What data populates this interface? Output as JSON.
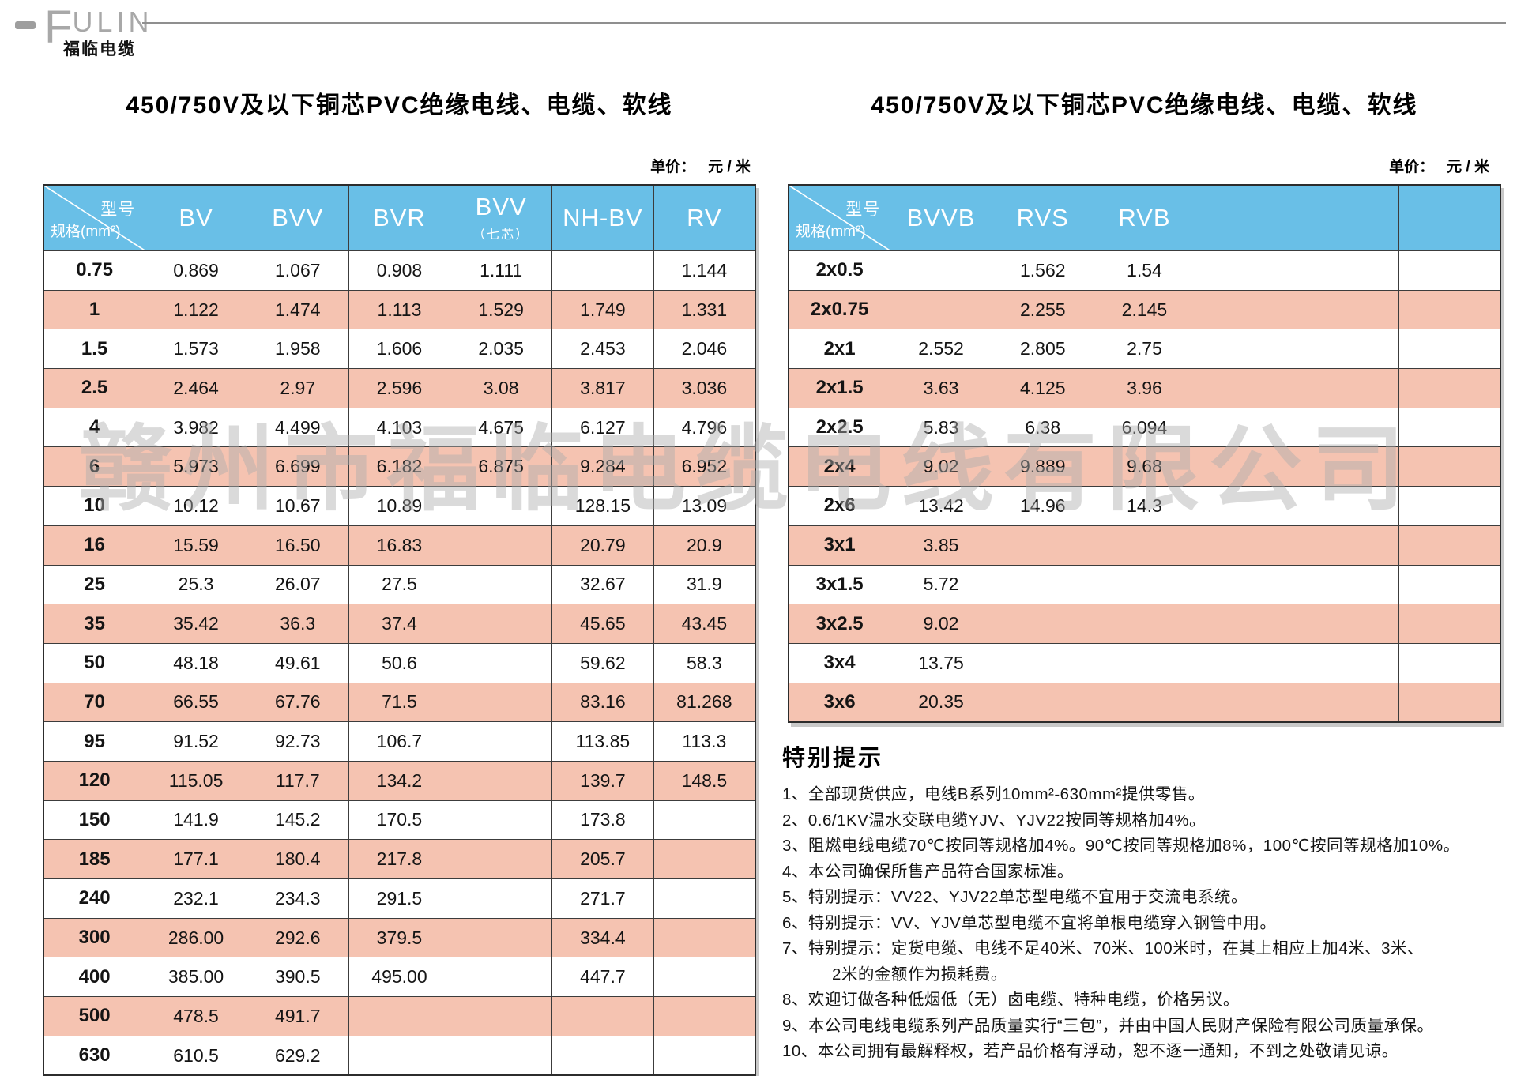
{
  "logo": {
    "brand_initial": "F",
    "brand_rest": "ULIN",
    "brand_cn": "福临电缆"
  },
  "watermark": "赣州市福临电缆电线有限公司",
  "left_table": {
    "title": "450/750V及以下铜芯PVC绝缘电线、电缆、软线",
    "unit_label": "单价：",
    "unit_value": "元 / 米",
    "corner_top": "型号",
    "corner_bottom": "规格(mm²)",
    "columns": [
      {
        "label": "BV",
        "sub": ""
      },
      {
        "label": "BVV",
        "sub": ""
      },
      {
        "label": "BVR",
        "sub": ""
      },
      {
        "label": "BVV",
        "sub": "（七芯）"
      },
      {
        "label": "NH-BV",
        "sub": ""
      },
      {
        "label": "RV",
        "sub": ""
      }
    ],
    "rows": [
      [
        "0.75",
        "0.869",
        "1.067",
        "0.908",
        "1.111",
        "",
        "1.144"
      ],
      [
        "1",
        "1.122",
        "1.474",
        "1.113",
        "1.529",
        "1.749",
        "1.331"
      ],
      [
        "1.5",
        "1.573",
        "1.958",
        "1.606",
        "2.035",
        "2.453",
        "2.046"
      ],
      [
        "2.5",
        "2.464",
        "2.97",
        "2.596",
        "3.08",
        "3.817",
        "3.036"
      ],
      [
        "4",
        "3.982",
        "4.499",
        "4.103",
        "4.675",
        "6.127",
        "4.796"
      ],
      [
        "6",
        "5.973",
        "6.699",
        "6.182",
        "6.875",
        "9.284",
        "6.952"
      ],
      [
        "10",
        "10.12",
        "10.67",
        "10.89",
        "",
        "128.15",
        "13.09"
      ],
      [
        "16",
        "15.59",
        "16.50",
        "16.83",
        "",
        "20.79",
        "20.9"
      ],
      [
        "25",
        "25.3",
        "26.07",
        "27.5",
        "",
        "32.67",
        "31.9"
      ],
      [
        "35",
        "35.42",
        "36.3",
        "37.4",
        "",
        "45.65",
        "43.45"
      ],
      [
        "50",
        "48.18",
        "49.61",
        "50.6",
        "",
        "59.62",
        "58.3"
      ],
      [
        "70",
        "66.55",
        "67.76",
        "71.5",
        "",
        "83.16",
        "81.268"
      ],
      [
        "95",
        "91.52",
        "92.73",
        "106.7",
        "",
        "113.85",
        "113.3"
      ],
      [
        "120",
        "115.05",
        "117.7",
        "134.2",
        "",
        "139.7",
        "148.5"
      ],
      [
        "150",
        "141.9",
        "145.2",
        "170.5",
        "",
        "173.8",
        ""
      ],
      [
        "185",
        "177.1",
        "180.4",
        "217.8",
        "",
        "205.7",
        ""
      ],
      [
        "240",
        "232.1",
        "234.3",
        "291.5",
        "",
        "271.7",
        ""
      ],
      [
        "300",
        "286.00",
        "292.6",
        "379.5",
        "",
        "334.4",
        ""
      ],
      [
        "400",
        "385.00",
        "390.5",
        "495.00",
        "",
        "447.7",
        ""
      ],
      [
        "500",
        "478.5",
        "491.7",
        "",
        "",
        "",
        ""
      ],
      [
        "630",
        "610.5",
        "629.2",
        "",
        "",
        "",
        ""
      ]
    ]
  },
  "right_table": {
    "title": "450/750V及以下铜芯PVC绝缘电线、电缆、软线",
    "unit_label": "单价：",
    "unit_value": "元 / 米",
    "corner_top": "型号",
    "corner_bottom": "规格(mm²)",
    "columns": [
      {
        "label": "BVVB",
        "sub": ""
      },
      {
        "label": "RVS",
        "sub": ""
      },
      {
        "label": "RVB",
        "sub": ""
      },
      {
        "label": "",
        "sub": ""
      },
      {
        "label": "",
        "sub": ""
      },
      {
        "label": "",
        "sub": ""
      }
    ],
    "rows": [
      [
        "2x0.5",
        "",
        "1.562",
        "1.54",
        "",
        "",
        ""
      ],
      [
        "2x0.75",
        "",
        "2.255",
        "2.145",
        "",
        "",
        ""
      ],
      [
        "2x1",
        "2.552",
        "2.805",
        "2.75",
        "",
        "",
        ""
      ],
      [
        "2x1.5",
        "3.63",
        "4.125",
        "3.96",
        "",
        "",
        ""
      ],
      [
        "2x2.5",
        "5.83",
        "6.38",
        "6.094",
        "",
        "",
        ""
      ],
      [
        "2x4",
        "9.02",
        "9.889",
        "9.68",
        "",
        "",
        ""
      ],
      [
        "2x6",
        "13.42",
        "14.96",
        "14.3",
        "",
        "",
        ""
      ],
      [
        "3x1",
        "3.85",
        "",
        "",
        "",
        "",
        ""
      ],
      [
        "3x1.5",
        "5.72",
        "",
        "",
        "",
        "",
        ""
      ],
      [
        "3x2.5",
        "9.02",
        "",
        "",
        "",
        "",
        ""
      ],
      [
        "3x4",
        "13.75",
        "",
        "",
        "",
        "",
        ""
      ],
      [
        "3x6",
        "20.35",
        "",
        "",
        "",
        "",
        ""
      ]
    ]
  },
  "notes": {
    "heading": "特别提示",
    "items": [
      "1、全部现货供应，电线B系列10mm²-630mm²提供零售。",
      "2、0.6/1KV温水交联电缆YJV、YJV22按同等规格加4%。",
      "3、阻燃电线电缆70℃按同等规格加4%。90℃按同等规格加8%，100℃按同等规格加10%。",
      "4、本公司确保所售产品符合国家标准。",
      "5、特别提示：VV22、YJV22单芯型电缆不宜用于交流电系统。",
      "6、特别提示：VV、YJV单芯型电缆不宜将单根电缆穿入钢管中用。",
      "7、特别提示：定货电缆、电线不足40米、70米、100米时，在其上相应上加4米、3米、",
      "　　　2米的金额作为损耗费。",
      "8、欢迎订做各种低烟低（无）卤电缆、特种电缆，价格另议。",
      "9、本公司电线电缆系列产品质量实行“三包”，并由中国人民财产保险有限公司质量承保。",
      "10、本公司拥有最解释权，若产品价格有浮动，恕不逐一通知，不到之处敬请见谅。"
    ]
  }
}
